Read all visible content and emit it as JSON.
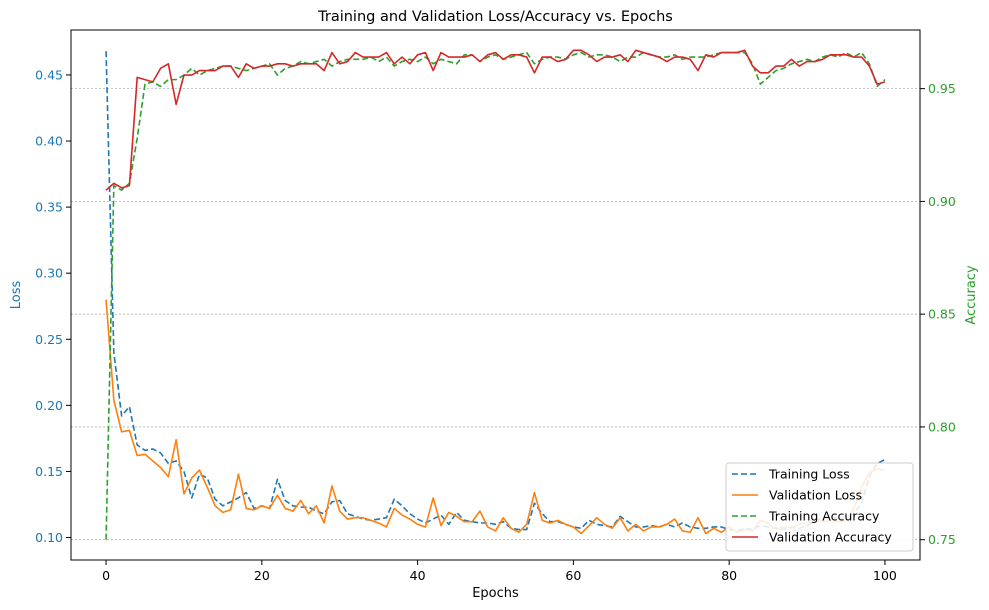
{
  "chart_data": {
    "type": "line",
    "title": "Training and Validation Loss/Accuracy vs. Epochs",
    "xlabel": "Epochs",
    "ylabel_left": "Loss",
    "ylabel_right": "Accuracy",
    "xlim": [
      -4.5,
      104.5
    ],
    "ylim_left": [
      0.083,
      0.484
    ],
    "ylim_right": [
      0.741,
      0.976
    ],
    "xticks": [
      0,
      20,
      40,
      60,
      80,
      100
    ],
    "yticks_left": [
      0.1,
      0.15,
      0.2,
      0.25,
      0.3,
      0.35,
      0.4,
      0.45
    ],
    "yticks_right": [
      0.75,
      0.8,
      0.85,
      0.9,
      0.95
    ],
    "grid": "horizontal dotted on accuracy axis",
    "legend_position": "lower-right",
    "colors": {
      "left_axis": "#1f77b4",
      "right_axis": "#2ca02c"
    },
    "series": [
      {
        "name": "Training Loss",
        "axis": "left",
        "color": "#1f77b4",
        "dash": "dashed",
        "values": [
          0.468,
          0.24,
          0.192,
          0.199,
          0.17,
          0.166,
          0.167,
          0.164,
          0.156,
          0.158,
          0.15,
          0.13,
          0.148,
          0.145,
          0.129,
          0.124,
          0.127,
          0.13,
          0.134,
          0.122,
          0.124,
          0.122,
          0.144,
          0.128,
          0.124,
          0.123,
          0.123,
          0.12,
          0.118,
          0.127,
          0.128,
          0.118,
          0.116,
          0.114,
          0.113,
          0.114,
          0.115,
          0.129,
          0.124,
          0.118,
          0.114,
          0.111,
          0.114,
          0.117,
          0.11,
          0.119,
          0.113,
          0.112,
          0.111,
          0.111,
          0.11,
          0.112,
          0.107,
          0.106,
          0.106,
          0.126,
          0.118,
          0.112,
          0.112,
          0.11,
          0.108,
          0.107,
          0.113,
          0.11,
          0.109,
          0.108,
          0.116,
          0.112,
          0.108,
          0.108,
          0.109,
          0.108,
          0.11,
          0.108,
          0.111,
          0.108,
          0.107,
          0.107,
          0.108,
          0.108,
          0.106,
          0.105,
          0.107,
          0.106,
          0.109,
          0.108,
          0.107,
          0.106,
          0.108,
          0.107,
          0.109,
          0.112,
          0.115,
          0.116,
          0.114,
          0.116,
          0.118,
          0.126,
          0.146,
          0.156,
          0.159
        ]
      },
      {
        "name": "Validation Loss",
        "axis": "left",
        "color": "#ff7f0e",
        "dash": "solid",
        "values": [
          0.28,
          0.204,
          0.18,
          0.181,
          0.162,
          0.163,
          0.158,
          0.153,
          0.146,
          0.174,
          0.133,
          0.145,
          0.151,
          0.138,
          0.124,
          0.119,
          0.121,
          0.148,
          0.122,
          0.121,
          0.124,
          0.122,
          0.132,
          0.122,
          0.12,
          0.128,
          0.118,
          0.124,
          0.111,
          0.139,
          0.12,
          0.114,
          0.115,
          0.115,
          0.113,
          0.111,
          0.108,
          0.122,
          0.117,
          0.114,
          0.11,
          0.108,
          0.13,
          0.109,
          0.119,
          0.116,
          0.112,
          0.112,
          0.12,
          0.108,
          0.105,
          0.115,
          0.107,
          0.104,
          0.11,
          0.134,
          0.113,
          0.111,
          0.113,
          0.11,
          0.108,
          0.103,
          0.109,
          0.115,
          0.11,
          0.107,
          0.115,
          0.105,
          0.11,
          0.105,
          0.108,
          0.108,
          0.11,
          0.114,
          0.105,
          0.104,
          0.115,
          0.103,
          0.107,
          0.104,
          0.108,
          0.104,
          0.106,
          0.105,
          0.113,
          0.111,
          0.106,
          0.108,
          0.107,
          0.11,
          0.111,
          0.113,
          0.112,
          0.113,
          0.112,
          0.113,
          0.122,
          0.138,
          0.149,
          0.152,
          0.151
        ]
      },
      {
        "name": "Training Accuracy",
        "axis": "right",
        "color": "#2ca02c",
        "dash": "dashed",
        "values": [
          0.75,
          0.907,
          0.905,
          0.908,
          0.928,
          0.952,
          0.953,
          0.951,
          0.954,
          0.954,
          0.956,
          0.959,
          0.956,
          0.958,
          0.959,
          0.96,
          0.96,
          0.959,
          0.958,
          0.959,
          0.96,
          0.961,
          0.956,
          0.959,
          0.96,
          0.962,
          0.961,
          0.962,
          0.963,
          0.96,
          0.962,
          0.963,
          0.963,
          0.963,
          0.964,
          0.962,
          0.964,
          0.96,
          0.962,
          0.963,
          0.962,
          0.964,
          0.961,
          0.963,
          0.962,
          0.961,
          0.965,
          0.965,
          0.962,
          0.964,
          0.965,
          0.963,
          0.964,
          0.965,
          0.966,
          0.961,
          0.963,
          0.964,
          0.964,
          0.963,
          0.965,
          0.966,
          0.964,
          0.965,
          0.965,
          0.964,
          0.962,
          0.964,
          0.964,
          0.966,
          0.965,
          0.964,
          0.964,
          0.965,
          0.963,
          0.964,
          0.964,
          0.964,
          0.965,
          0.966,
          0.966,
          0.966,
          0.966,
          0.961,
          0.952,
          0.955,
          0.958,
          0.959,
          0.961,
          0.962,
          0.963,
          0.962,
          0.964,
          0.965,
          0.964,
          0.966,
          0.964,
          0.966,
          0.961,
          0.951,
          0.954
        ]
      },
      {
        "name": "Validation Accuracy",
        "axis": "right",
        "color": "#d62728",
        "dash": "solid",
        "values": [
          0.905,
          0.908,
          0.906,
          0.907,
          0.955,
          0.954,
          0.953,
          0.959,
          0.961,
          0.943,
          0.956,
          0.956,
          0.958,
          0.958,
          0.958,
          0.96,
          0.96,
          0.955,
          0.961,
          0.959,
          0.96,
          0.96,
          0.961,
          0.961,
          0.96,
          0.961,
          0.961,
          0.961,
          0.958,
          0.966,
          0.961,
          0.962,
          0.966,
          0.964,
          0.964,
          0.964,
          0.966,
          0.961,
          0.964,
          0.961,
          0.965,
          0.966,
          0.958,
          0.966,
          0.964,
          0.964,
          0.964,
          0.965,
          0.962,
          0.965,
          0.966,
          0.963,
          0.965,
          0.965,
          0.964,
          0.957,
          0.964,
          0.964,
          0.962,
          0.963,
          0.967,
          0.967,
          0.965,
          0.962,
          0.964,
          0.964,
          0.965,
          0.962,
          0.967,
          0.966,
          0.965,
          0.964,
          0.962,
          0.964,
          0.964,
          0.963,
          0.958,
          0.965,
          0.964,
          0.966,
          0.966,
          0.966,
          0.967,
          0.96,
          0.957,
          0.957,
          0.96,
          0.96,
          0.963,
          0.96,
          0.962,
          0.962,
          0.963,
          0.965,
          0.965,
          0.965,
          0.964,
          0.964,
          0.96,
          0.952,
          0.953
        ]
      }
    ]
  }
}
